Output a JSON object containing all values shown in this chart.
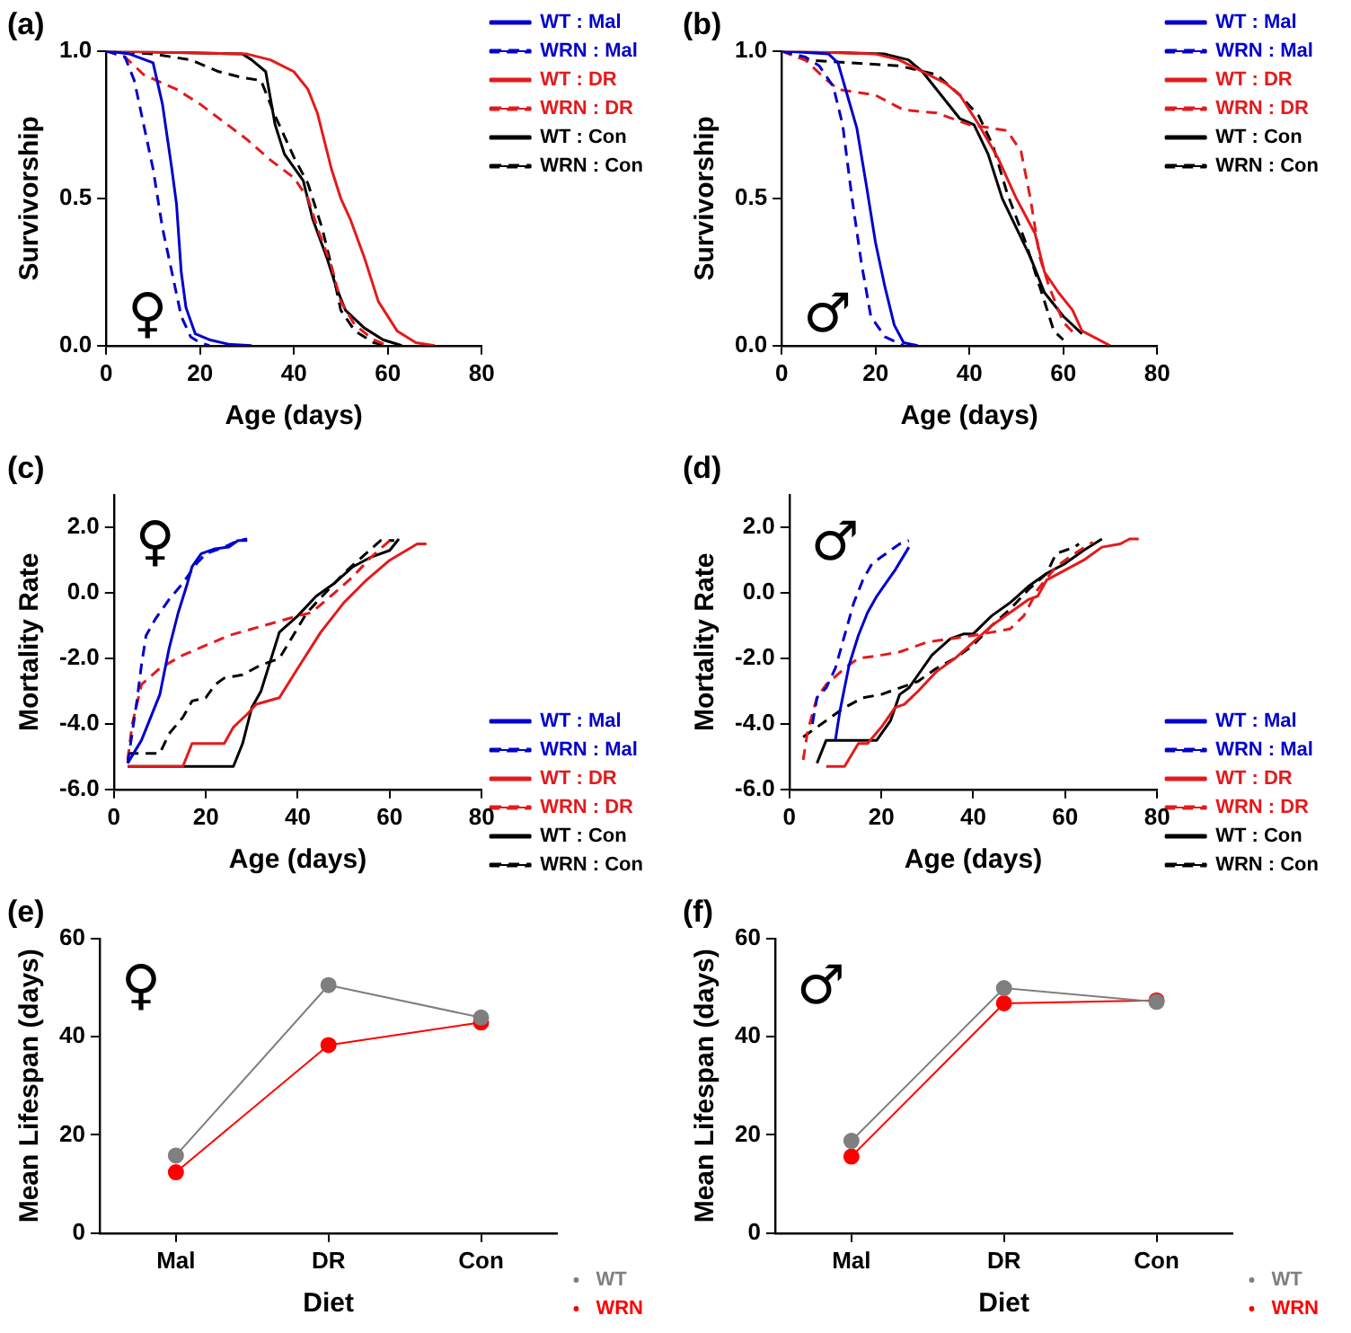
{
  "chart_data": [
    {
      "type": "line",
      "title": "(a)",
      "xlabel": "Age (days)",
      "ylabel": "Survivorship",
      "xlim": [
        0,
        80
      ],
      "xticks": [
        0,
        20,
        40,
        60,
        80
      ],
      "ylim": [
        0,
        1
      ],
      "yticks": [
        {
          "value": 0,
          "label": "0.0"
        },
        {
          "value": 0.5,
          "label": "0.5"
        },
        {
          "value": 1,
          "label": "1.0"
        }
      ],
      "legend": "top right",
      "marker": "none",
      "annotations": [
        "♀"
      ],
      "series": [
        {
          "name": "WT : Mal",
          "color": "#0000cc",
          "line_style": "solid",
          "x": [
            0,
            5,
            10,
            12,
            14,
            15,
            16,
            17,
            19,
            22,
            26,
            31
          ],
          "values": [
            1,
            0.99,
            0.96,
            0.82,
            0.6,
            0.48,
            0.25,
            0.13,
            0.04,
            0.02,
            0.005,
            0
          ]
        },
        {
          "name": "WRN : Mal",
          "color": "#0000cc",
          "line_style": "dashed",
          "x": [
            0,
            4,
            6,
            8,
            10,
            12,
            14,
            16,
            18,
            20,
            22
          ],
          "values": [
            1,
            0.98,
            0.9,
            0.75,
            0.6,
            0.4,
            0.25,
            0.1,
            0.03,
            0.01,
            0
          ]
        },
        {
          "name": "WT : DR",
          "color": "#e31a1c",
          "line_style": "solid",
          "x": [
            0,
            30,
            35,
            40,
            43,
            45,
            48,
            50,
            52,
            55,
            58,
            62,
            66,
            70
          ],
          "values": [
            1,
            0.99,
            0.97,
            0.93,
            0.87,
            0.79,
            0.6,
            0.5,
            0.43,
            0.3,
            0.15,
            0.05,
            0.01,
            0
          ]
        },
        {
          "name": "WRN : DR",
          "color": "#e31a1c",
          "line_style": "dashed",
          "x": [
            0,
            4,
            8,
            15,
            20,
            25,
            30,
            35,
            40,
            43,
            45,
            48,
            50,
            53,
            57,
            60
          ],
          "values": [
            1,
            0.98,
            0.92,
            0.87,
            0.82,
            0.76,
            0.7,
            0.63,
            0.57,
            0.5,
            0.4,
            0.27,
            0.15,
            0.07,
            0.02,
            0
          ]
        },
        {
          "name": "WT : Con",
          "color": "#000000",
          "line_style": "solid",
          "x": [
            0,
            29,
            31,
            34,
            36,
            38,
            42,
            44,
            47,
            49,
            51,
            55,
            59,
            63
          ],
          "values": [
            1,
            0.99,
            0.97,
            0.93,
            0.75,
            0.65,
            0.56,
            0.43,
            0.3,
            0.2,
            0.12,
            0.06,
            0.02,
            0
          ]
        },
        {
          "name": "WRN : Con",
          "color": "#000000",
          "line_style": "dashed",
          "x": [
            0,
            10,
            18,
            24,
            29,
            33,
            36,
            40,
            43,
            46,
            48,
            50,
            53,
            57,
            60
          ],
          "values": [
            1,
            0.99,
            0.97,
            0.93,
            0.91,
            0.9,
            0.78,
            0.64,
            0.55,
            0.4,
            0.27,
            0.12,
            0.05,
            0.01,
            0
          ]
        }
      ]
    },
    {
      "type": "line",
      "title": "(b)",
      "xlabel": "Age (days)",
      "ylabel": "Survivorship",
      "xlim": [
        0,
        80
      ],
      "xticks": [
        0,
        20,
        40,
        60,
        80
      ],
      "ylim": [
        0,
        1
      ],
      "yticks": [
        {
          "value": 0,
          "label": "0.0"
        },
        {
          "value": 0.5,
          "label": "0.5"
        },
        {
          "value": 1,
          "label": "1.0"
        }
      ],
      "legend": "top right",
      "marker": "none",
      "annotations": [
        "♂"
      ],
      "series": [
        {
          "name": "WT : Mal",
          "color": "#0000cc",
          "line_style": "solid",
          "x": [
            0,
            10,
            12,
            14,
            16,
            18,
            20,
            22,
            24,
            26,
            29
          ],
          "values": [
            1,
            0.99,
            0.96,
            0.85,
            0.74,
            0.55,
            0.35,
            0.2,
            0.07,
            0.01,
            0
          ]
        },
        {
          "name": "WRN : Mal",
          "color": "#0000cc",
          "line_style": "dashed",
          "x": [
            0,
            5,
            8,
            11,
            13,
            15,
            17,
            19,
            22,
            26
          ],
          "values": [
            1,
            0.98,
            0.95,
            0.88,
            0.75,
            0.5,
            0.28,
            0.1,
            0.03,
            0
          ]
        },
        {
          "name": "WT : DR",
          "color": "#e31a1c",
          "line_style": "solid",
          "x": [
            0,
            20,
            25,
            30,
            35,
            38,
            42,
            46,
            50,
            54,
            56,
            59,
            62,
            64,
            70
          ],
          "values": [
            1,
            0.99,
            0.97,
            0.93,
            0.89,
            0.85,
            0.75,
            0.64,
            0.5,
            0.38,
            0.25,
            0.18,
            0.12,
            0.05,
            0
          ]
        },
        {
          "name": "WRN : DR",
          "color": "#e31a1c",
          "line_style": "dashed",
          "x": [
            0,
            5,
            9,
            12,
            20,
            26,
            33,
            40,
            44,
            48,
            51,
            53,
            55,
            57,
            60,
            63
          ],
          "values": [
            1,
            0.97,
            0.91,
            0.87,
            0.85,
            0.8,
            0.79,
            0.75,
            0.74,
            0.73,
            0.66,
            0.5,
            0.3,
            0.2,
            0.08,
            0.03
          ]
        },
        {
          "name": "WT : Con",
          "color": "#000000",
          "line_style": "solid",
          "x": [
            0,
            22,
            27,
            30,
            34,
            38,
            41,
            44,
            47,
            50,
            53,
            56,
            60,
            64
          ],
          "values": [
            1,
            0.99,
            0.97,
            0.93,
            0.85,
            0.77,
            0.75,
            0.65,
            0.5,
            0.4,
            0.3,
            0.18,
            0.1,
            0.04
          ]
        },
        {
          "name": "WRN : Con",
          "color": "#000000",
          "line_style": "dashed",
          "x": [
            0,
            5,
            15,
            25,
            33,
            38,
            42,
            45,
            48,
            52,
            55,
            58,
            60
          ],
          "values": [
            1,
            0.97,
            0.96,
            0.95,
            0.92,
            0.85,
            0.78,
            0.68,
            0.52,
            0.35,
            0.2,
            0.05,
            0.02
          ]
        }
      ]
    },
    {
      "type": "line",
      "title": "(c)",
      "xlabel": "Age (days)",
      "ylabel": "Mortality Rate",
      "xlim": [
        0,
        80
      ],
      "xticks": [
        0,
        20,
        40,
        60,
        80
      ],
      "ylim": [
        -6,
        3
      ],
      "yticks": [
        {
          "value": -6,
          "label": "-6.0"
        },
        {
          "value": -4,
          "label": "-4.0"
        },
        {
          "value": -2,
          "label": "-2.0"
        },
        {
          "value": 0,
          "label": "0.0"
        },
        {
          "value": 2,
          "label": "2.0"
        }
      ],
      "legend": "bottom right",
      "marker": "none",
      "annotations": [
        "♀"
      ],
      "series": [
        {
          "name": "WT : Mal",
          "color": "#0000cc",
          "line_style": "solid",
          "x": [
            3,
            6,
            8,
            10,
            12,
            14,
            16,
            17,
            19,
            22,
            25,
            27,
            29
          ],
          "values": [
            -5.2,
            -4.5,
            -3.8,
            -3.1,
            -1.7,
            -0.6,
            0.3,
            0.8,
            1.2,
            1.35,
            1.4,
            1.6,
            1.6
          ]
        },
        {
          "name": "WRN : Mal",
          "color": "#0000cc",
          "line_style": "dashed",
          "x": [
            3,
            5,
            6,
            7,
            9,
            12,
            15,
            18,
            20,
            24,
            27,
            29
          ],
          "values": [
            -5.2,
            -3.3,
            -2.2,
            -1.3,
            -0.8,
            -0.2,
            0.3,
            0.9,
            1.2,
            1.4,
            1.6,
            1.65
          ]
        },
        {
          "name": "WT : DR",
          "color": "#e31a1c",
          "line_style": "solid",
          "x": [
            3,
            15,
            17,
            24,
            26,
            29,
            31,
            36,
            40,
            45,
            50,
            55,
            60,
            66,
            68
          ],
          "values": [
            -5.3,
            -5.3,
            -4.6,
            -4.6,
            -4.1,
            -3.7,
            -3.4,
            -3.2,
            -2.3,
            -1.2,
            -0.3,
            0.4,
            1.0,
            1.5,
            1.5
          ]
        },
        {
          "name": "WRN : DR",
          "color": "#e31a1c",
          "line_style": "dashed",
          "x": [
            3,
            4,
            6,
            10,
            15,
            20,
            25,
            30,
            35,
            40,
            43,
            48,
            52,
            56,
            60
          ],
          "values": [
            -5.1,
            -4.0,
            -2.8,
            -2.3,
            -1.9,
            -1.6,
            -1.3,
            -1.1,
            -0.9,
            -0.7,
            -0.6,
            0.0,
            0.5,
            1.1,
            1.6
          ]
        },
        {
          "name": "WT : Con",
          "color": "#000000",
          "line_style": "solid",
          "x": [
            3,
            26,
            28,
            30,
            32,
            34,
            36,
            40,
            44,
            48,
            52,
            56,
            60,
            62
          ],
          "values": [
            -5.3,
            -5.3,
            -4.6,
            -3.5,
            -3.0,
            -2.1,
            -1.2,
            -0.7,
            -0.1,
            0.3,
            0.8,
            1.1,
            1.3,
            1.65
          ]
        },
        {
          "name": "WRN : Con",
          "color": "#000000",
          "line_style": "dashed",
          "x": [
            3,
            10,
            12,
            15,
            17,
            20,
            22,
            24,
            28,
            32,
            36,
            39,
            42,
            46,
            50,
            54,
            58,
            61
          ],
          "values": [
            -4.9,
            -4.9,
            -4.3,
            -3.8,
            -3.3,
            -3.2,
            -2.8,
            -2.6,
            -2.5,
            -2.2,
            -2.0,
            -1.3,
            -0.6,
            0.0,
            0.6,
            1.1,
            1.6,
            1.6
          ]
        }
      ]
    },
    {
      "type": "line",
      "title": "(d)",
      "xlabel": "Age (days)",
      "ylabel": "Mortality Rate",
      "xlim": [
        0,
        80
      ],
      "xticks": [
        0,
        20,
        40,
        60,
        80
      ],
      "ylim": [
        -6,
        3
      ],
      "yticks": [
        {
          "value": -6,
          "label": "-6.0"
        },
        {
          "value": -4,
          "label": "-4.0"
        },
        {
          "value": -2,
          "label": "-2.0"
        },
        {
          "value": 0,
          "label": "0.0"
        },
        {
          "value": 2,
          "label": "2.0"
        }
      ],
      "legend": "bottom right",
      "marker": "none",
      "annotations": [
        "♂"
      ],
      "series": [
        {
          "name": "WT : Mal",
          "color": "#0000cc",
          "line_style": "solid",
          "x": [
            10,
            11,
            12,
            13,
            15,
            17,
            19,
            21,
            23,
            26
          ],
          "values": [
            -4.5,
            -3.6,
            -2.9,
            -2.2,
            -1.3,
            -0.6,
            -0.1,
            0.3,
            0.7,
            1.4
          ]
        },
        {
          "name": "WRN : Mal",
          "color": "#0000cc",
          "line_style": "dashed",
          "x": [
            5,
            6,
            8,
            10,
            12,
            14,
            16,
            18,
            20,
            24,
            26
          ],
          "values": [
            -4.0,
            -3.2,
            -2.9,
            -2.3,
            -1.3,
            -0.3,
            0.4,
            0.9,
            1.1,
            1.5,
            1.6
          ]
        },
        {
          "name": "WT : DR",
          "color": "#e31a1c",
          "line_style": "solid",
          "x": [
            8,
            12,
            15,
            17,
            20,
            23,
            25,
            28,
            32,
            36,
            40,
            44,
            48,
            52,
            54,
            56,
            60,
            64,
            68,
            72,
            74,
            76
          ],
          "values": [
            -5.3,
            -5.3,
            -4.6,
            -4.6,
            -4.1,
            -3.5,
            -3.4,
            -3.0,
            -2.4,
            -2.0,
            -1.5,
            -1.0,
            -0.6,
            -0.2,
            -0.1,
            0.4,
            0.7,
            1.0,
            1.4,
            1.5,
            1.65,
            1.65
          ]
        },
        {
          "name": "WRN : DR",
          "color": "#e31a1c",
          "line_style": "dashed",
          "x": [
            3,
            4,
            6,
            8,
            12,
            15,
            20,
            24,
            30,
            35,
            40,
            44,
            48,
            51,
            54,
            58,
            62,
            66
          ],
          "values": [
            -5.1,
            -4.2,
            -3.2,
            -2.8,
            -2.3,
            -2.0,
            -1.9,
            -1.8,
            -1.5,
            -1.4,
            -1.3,
            -1.2,
            -1.1,
            -0.7,
            0.1,
            0.8,
            1.2,
            1.55
          ]
        },
        {
          "name": "WT : Con",
          "color": "#000000",
          "line_style": "solid",
          "x": [
            6,
            8,
            19,
            22,
            24,
            26,
            28,
            31,
            35,
            38,
            40,
            44,
            48,
            52,
            56,
            60,
            64,
            68
          ],
          "values": [
            -5.2,
            -4.5,
            -4.5,
            -3.9,
            -3.1,
            -2.9,
            -2.5,
            -1.9,
            -1.4,
            -1.25,
            -1.25,
            -0.7,
            -0.3,
            0.2,
            0.6,
            0.9,
            1.3,
            1.65
          ]
        },
        {
          "name": "WRN : Con",
          "color": "#000000",
          "line_style": "dashed",
          "x": [
            3,
            8,
            12,
            16,
            20,
            24,
            28,
            32,
            36,
            40,
            44,
            48,
            52,
            56,
            58,
            60,
            62,
            63
          ],
          "values": [
            -4.4,
            -3.9,
            -3.5,
            -3.2,
            -3.1,
            -2.9,
            -2.7,
            -2.3,
            -2.0,
            -1.6,
            -1.0,
            -0.5,
            0.1,
            0.6,
            1.2,
            1.3,
            1.4,
            1.5
          ]
        }
      ]
    },
    {
      "type": "line",
      "title": "(e)",
      "xlabel": "Diet",
      "ylabel": "Mean Lifespan (days)",
      "categories": [
        "Mal",
        "DR",
        "Con"
      ],
      "ylim": [
        0,
        60
      ],
      "yticks": [
        0,
        20,
        40,
        60
      ],
      "legend": "bottom right",
      "marker": "circle",
      "annotations": [
        "♀"
      ],
      "series": [
        {
          "name": "WT",
          "color": "#7f7f7f",
          "values": [
            15.8,
            50.5,
            43.9
          ]
        },
        {
          "name": "WRN",
          "color": "#ff0000",
          "values": [
            12.4,
            38.3,
            42.9
          ]
        }
      ]
    },
    {
      "type": "line",
      "title": "(f)",
      "xlabel": "Diet",
      "ylabel": "Mean Lifespan (days)",
      "categories": [
        "Mal",
        "DR",
        "Con"
      ],
      "ylim": [
        0,
        60
      ],
      "yticks": [
        0,
        20,
        40,
        60
      ],
      "legend": "bottom right",
      "marker": "circle",
      "annotations": [
        "♂"
      ],
      "series": [
        {
          "name": "WT",
          "color": "#7f7f7f",
          "values": [
            18.8,
            49.9,
            47.1
          ]
        },
        {
          "name": "WRN",
          "color": "#ff0000",
          "values": [
            15.6,
            46.8,
            47.4
          ]
        }
      ]
    }
  ]
}
